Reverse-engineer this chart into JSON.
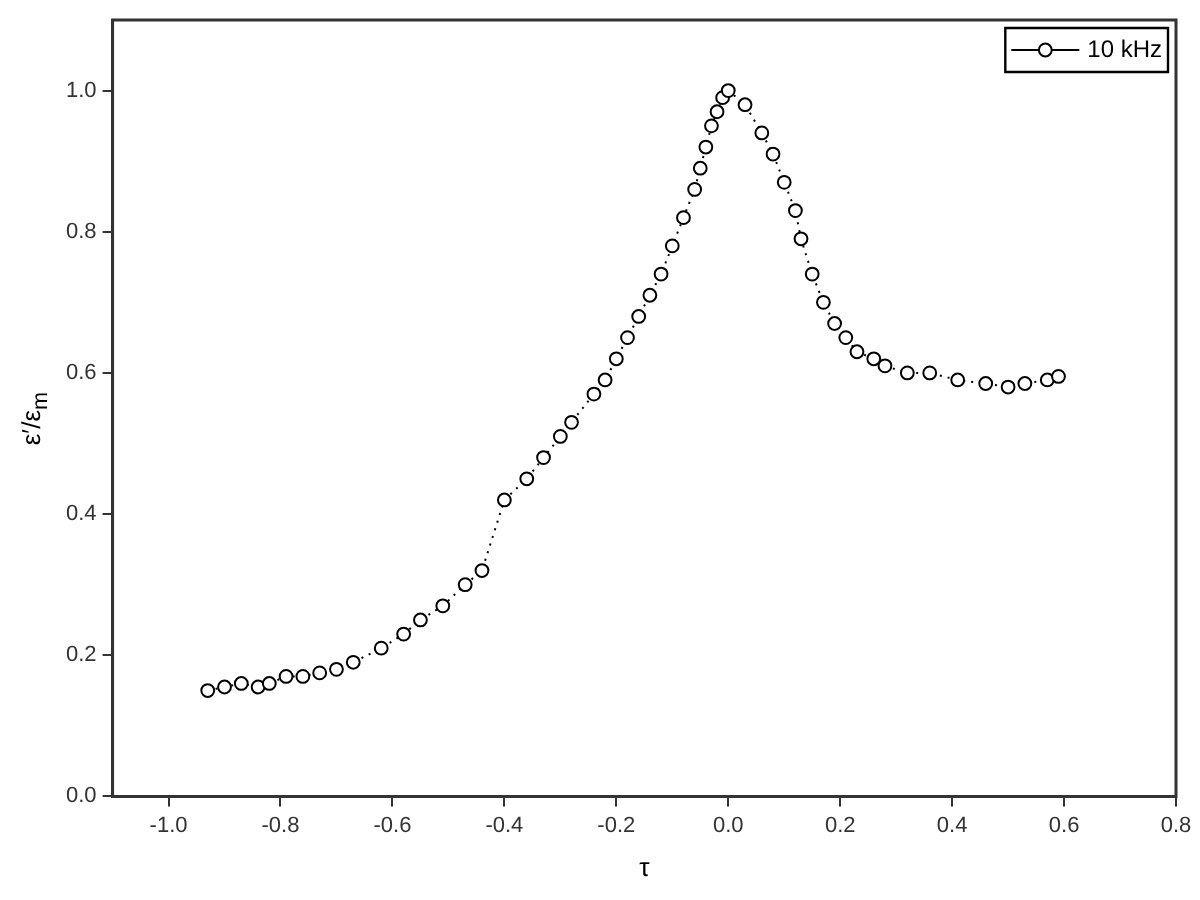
{
  "chart_data": {
    "type": "line",
    "xlabel": "τ",
    "ylabel": "ε′/ε$_{m}$",
    "xlim": [
      -1.1,
      0.8
    ],
    "xticks": [
      {
        "value": -1,
        "label": "-1.0"
      },
      {
        "value": -0.8,
        "label": "-0.8"
      },
      {
        "value": -0.6,
        "label": "-0.6"
      },
      {
        "value": -0.4,
        "label": "-0.4"
      },
      {
        "value": -0.2,
        "label": "-0.2"
      },
      {
        "value": 0,
        "label": "0.0"
      },
      {
        "value": 0.2,
        "label": "0.2"
      },
      {
        "value": 0.4,
        "label": "0.4"
      },
      {
        "value": 0.6,
        "label": "0.6"
      },
      {
        "value": 0.8,
        "label": "0.8"
      }
    ],
    "ylim": [
      0,
      1.1
    ],
    "yticks": [
      {
        "value": 0,
        "label": "0.0"
      },
      {
        "value": 0.2,
        "label": "0.2"
      },
      {
        "value": 0.4,
        "label": "0.4"
      },
      {
        "value": 0.6,
        "label": "0.6"
      },
      {
        "value": 0.8,
        "label": "0.8"
      },
      {
        "value": 1,
        "label": "1.0"
      }
    ],
    "grid": false,
    "legend": "top right",
    "marker": "circle",
    "line_style": "dotted",
    "series": [
      {
        "name": "10 kHz",
        "color": "#000000",
        "x": [
          -0.93,
          -0.9,
          -0.87,
          -0.84,
          -0.82,
          -0.79,
          -0.76,
          -0.73,
          -0.7,
          -0.67,
          -0.62,
          -0.58,
          -0.55,
          -0.51,
          -0.47,
          -0.44,
          -0.4,
          -0.36,
          -0.33,
          -0.3,
          -0.28,
          -0.24,
          -0.22,
          -0.2,
          -0.18,
          -0.16,
          -0.14,
          -0.12,
          -0.1,
          -0.08,
          -0.06,
          -0.05,
          -0.04,
          -0.03,
          -0.02,
          -0.01,
          0,
          0.03,
          0.06,
          0.08,
          0.1,
          0.12,
          0.13,
          0.15,
          0.17,
          0.19,
          0.21,
          0.23,
          0.26,
          0.28,
          0.32,
          0.36,
          0.41,
          0.46,
          0.5,
          0.53,
          0.57,
          0.59
        ],
        "values": [
          0.15,
          0.155,
          0.16,
          0.155,
          0.16,
          0.17,
          0.17,
          0.175,
          0.18,
          0.19,
          0.21,
          0.23,
          0.25,
          0.27,
          0.3,
          0.32,
          0.42,
          0.45,
          0.48,
          0.51,
          0.53,
          0.57,
          0.59,
          0.62,
          0.65,
          0.68,
          0.71,
          0.74,
          0.78,
          0.82,
          0.86,
          0.89,
          0.92,
          0.95,
          0.97,
          0.99,
          1.0,
          0.98,
          0.94,
          0.91,
          0.87,
          0.83,
          0.79,
          0.74,
          0.7,
          0.67,
          0.65,
          0.63,
          0.62,
          0.61,
          0.6,
          0.6,
          0.59,
          0.585,
          0.58,
          0.585,
          0.59,
          0.595
        ]
      }
    ]
  }
}
